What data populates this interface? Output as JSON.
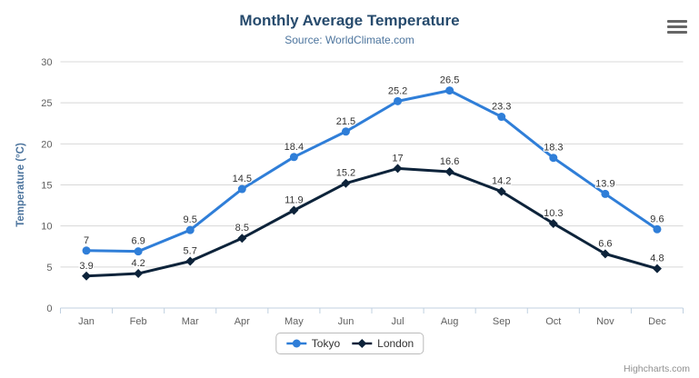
{
  "chart_data": {
    "type": "line",
    "title": "Monthly Average Temperature",
    "subtitle": "Source: WorldClimate.com",
    "categories": [
      "Jan",
      "Feb",
      "Mar",
      "Apr",
      "May",
      "Jun",
      "Jul",
      "Aug",
      "Sep",
      "Oct",
      "Nov",
      "Dec"
    ],
    "series": [
      {
        "name": "Tokyo",
        "color": "#2f7ed8",
        "marker": "circle",
        "values": [
          7,
          6.9,
          9.5,
          14.5,
          18.4,
          21.5,
          25.2,
          26.5,
          23.3,
          18.3,
          13.9,
          9.6
        ]
      },
      {
        "name": "London",
        "color": "#0d233a",
        "marker": "diamond",
        "values": [
          3.9,
          4.2,
          5.7,
          8.5,
          11.9,
          15.2,
          17,
          16.6,
          14.2,
          10.3,
          6.6,
          4.8
        ]
      }
    ],
    "xlabel": "",
    "ylabel": "Temperature (°C)",
    "ylim": [
      0,
      30
    ],
    "ytick_interval": 5,
    "grid": true,
    "legend_position": "bottom",
    "data_labels": true
  },
  "credits": {
    "label": "Highcharts.com"
  },
  "colors": {
    "title": "#274b6d",
    "subtitle": "#4d759e",
    "axis_title": "#4d759e",
    "axis_label": "#606060",
    "grid": "#d8d8d8",
    "axis_line": "#c0d0e0",
    "tick": "#c0d0e0",
    "data_label": "#333333",
    "legend_text": "#333333",
    "menu_icon": "#666666",
    "credits": "#909090"
  }
}
